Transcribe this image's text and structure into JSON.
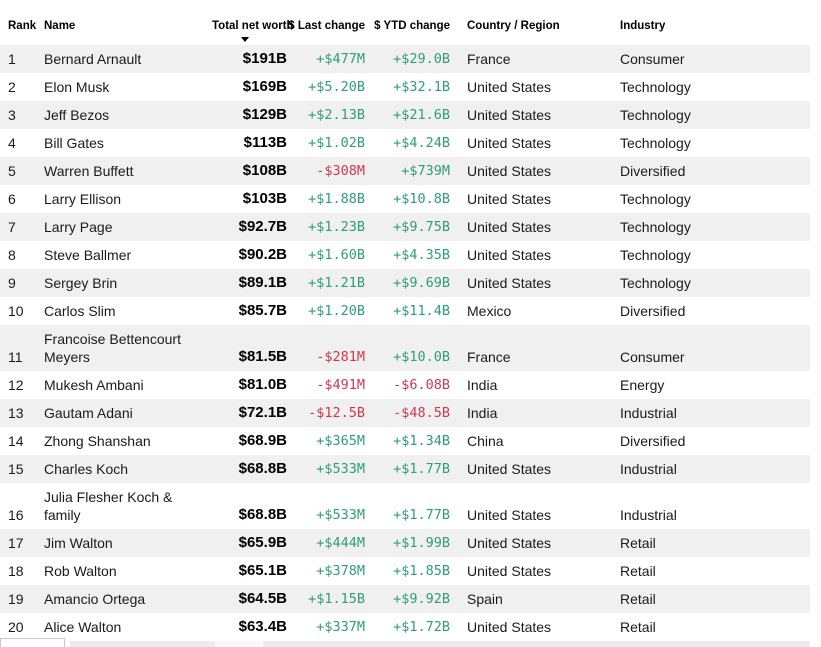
{
  "colors": {
    "positive": "#2d9e76",
    "negative": "#d23750",
    "row_stripe": "#f0f0f0"
  },
  "sort": {
    "column": "Total net worth",
    "direction": "descending"
  },
  "table": {
    "columns": [
      "Rank",
      "Name",
      "Total net worth",
      "$ Last change",
      "$ YTD change",
      "Country / Region",
      "Industry"
    ],
    "rows": [
      {
        "rank": "1",
        "name": "Bernard Arnault",
        "net_worth": "$191B",
        "last_change": "+$477M",
        "ytd_change": "+$29.0B",
        "country": "France",
        "industry": "Consumer"
      },
      {
        "rank": "2",
        "name": "Elon Musk",
        "net_worth": "$169B",
        "last_change": "+$5.20B",
        "ytd_change": "+$32.1B",
        "country": "United States",
        "industry": "Technology"
      },
      {
        "rank": "3",
        "name": "Jeff Bezos",
        "net_worth": "$129B",
        "last_change": "+$2.13B",
        "ytd_change": "+$21.6B",
        "country": "United States",
        "industry": "Technology"
      },
      {
        "rank": "4",
        "name": "Bill Gates",
        "net_worth": "$113B",
        "last_change": "+$1.02B",
        "ytd_change": "+$4.24B",
        "country": "United States",
        "industry": "Technology"
      },
      {
        "rank": "5",
        "name": "Warren Buffett",
        "net_worth": "$108B",
        "last_change": "-$308M",
        "ytd_change": "+$739M",
        "country": "United States",
        "industry": "Diversified"
      },
      {
        "rank": "6",
        "name": "Larry Ellison",
        "net_worth": "$103B",
        "last_change": "+$1.88B",
        "ytd_change": "+$10.8B",
        "country": "United States",
        "industry": "Technology"
      },
      {
        "rank": "7",
        "name": "Larry Page",
        "net_worth": "$92.7B",
        "last_change": "+$1.23B",
        "ytd_change": "+$9.75B",
        "country": "United States",
        "industry": "Technology"
      },
      {
        "rank": "8",
        "name": "Steve Ballmer",
        "net_worth": "$90.2B",
        "last_change": "+$1.60B",
        "ytd_change": "+$4.35B",
        "country": "United States",
        "industry": "Technology"
      },
      {
        "rank": "9",
        "name": "Sergey Brin",
        "net_worth": "$89.1B",
        "last_change": "+$1.21B",
        "ytd_change": "+$9.69B",
        "country": "United States",
        "industry": "Technology"
      },
      {
        "rank": "10",
        "name": "Carlos Slim",
        "net_worth": "$85.7B",
        "last_change": "+$1.20B",
        "ytd_change": "+$11.4B",
        "country": "Mexico",
        "industry": "Diversified"
      },
      {
        "rank": "11",
        "name": "Francoise Bettencourt Meyers",
        "net_worth": "$81.5B",
        "last_change": "-$281M",
        "ytd_change": "+$10.0B",
        "country": "France",
        "industry": "Consumer"
      },
      {
        "rank": "12",
        "name": "Mukesh Ambani",
        "net_worth": "$81.0B",
        "last_change": "-$491M",
        "ytd_change": "-$6.08B",
        "country": "India",
        "industry": "Energy"
      },
      {
        "rank": "13",
        "name": "Gautam Adani",
        "net_worth": "$72.1B",
        "last_change": "-$12.5B",
        "ytd_change": "-$48.5B",
        "country": "India",
        "industry": "Industrial"
      },
      {
        "rank": "14",
        "name": "Zhong Shanshan",
        "net_worth": "$68.9B",
        "last_change": "+$365M",
        "ytd_change": "+$1.34B",
        "country": "China",
        "industry": "Diversified"
      },
      {
        "rank": "15",
        "name": "Charles Koch",
        "net_worth": "$68.8B",
        "last_change": "+$533M",
        "ytd_change": "+$1.77B",
        "country": "United States",
        "industry": "Industrial"
      },
      {
        "rank": "16",
        "name": "Julia Flesher Koch & family",
        "net_worth": "$68.8B",
        "last_change": "+$533M",
        "ytd_change": "+$1.77B",
        "country": "United States",
        "industry": "Industrial"
      },
      {
        "rank": "17",
        "name": "Jim Walton",
        "net_worth": "$65.9B",
        "last_change": "+$444M",
        "ytd_change": "+$1.99B",
        "country": "United States",
        "industry": "Retail"
      },
      {
        "rank": "18",
        "name": "Rob Walton",
        "net_worth": "$65.1B",
        "last_change": "+$378M",
        "ytd_change": "+$1.85B",
        "country": "United States",
        "industry": "Retail"
      },
      {
        "rank": "19",
        "name": "Amancio Ortega",
        "net_worth": "$64.5B",
        "last_change": "+$1.15B",
        "ytd_change": "+$9.92B",
        "country": "Spain",
        "industry": "Retail"
      },
      {
        "rank": "20",
        "name": "Alice Walton",
        "net_worth": "$63.4B",
        "last_change": "+$337M",
        "ytd_change": "+$1.72B",
        "country": "United States",
        "industry": "Retail"
      }
    ]
  }
}
